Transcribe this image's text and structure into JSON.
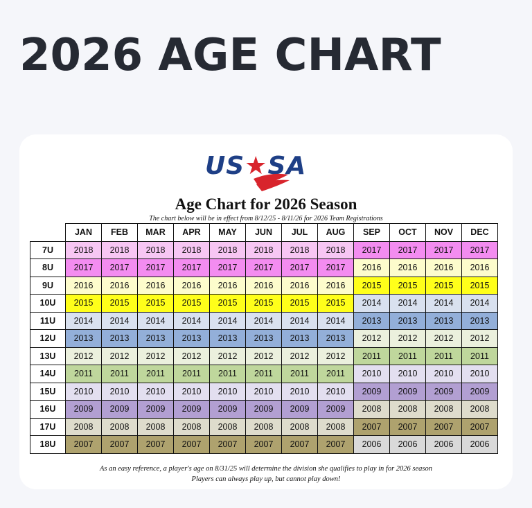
{
  "page_title": "2026 AGE CHART",
  "logo_text_left": "US",
  "logo_text_star": "★",
  "logo_text_right": "SA",
  "chart_title": "Age Chart for 2026 Season",
  "chart_subtitle": "The chart below will be in effect from 8/12/25 - 8/11/26 for 2026 Team Registrations",
  "months": [
    "JAN",
    "FEB",
    "MAR",
    "APR",
    "MAY",
    "JUN",
    "JUL",
    "AUG",
    "SEP",
    "OCT",
    "NOV",
    "DEC"
  ],
  "chart_data": {
    "type": "table",
    "columns": [
      "JAN",
      "FEB",
      "MAR",
      "APR",
      "MAY",
      "JUN",
      "JUL",
      "AUG",
      "SEP",
      "OCT",
      "NOV",
      "DEC"
    ],
    "rows": [
      {
        "division": "7U",
        "values": [
          "2018",
          "2018",
          "2018",
          "2018",
          "2018",
          "2018",
          "2018",
          "2018",
          "2017",
          "2017",
          "2017",
          "2017"
        ]
      },
      {
        "division": "8U",
        "values": [
          "2017",
          "2017",
          "2017",
          "2017",
          "2017",
          "2017",
          "2017",
          "2017",
          "2016",
          "2016",
          "2016",
          "2016"
        ]
      },
      {
        "division": "9U",
        "values": [
          "2016",
          "2016",
          "2016",
          "2016",
          "2016",
          "2016",
          "2016",
          "2016",
          "2015",
          "2015",
          "2015",
          "2015"
        ]
      },
      {
        "division": "10U",
        "values": [
          "2015",
          "2015",
          "2015",
          "2015",
          "2015",
          "2015",
          "2015",
          "2015",
          "2014",
          "2014",
          "2014",
          "2014"
        ]
      },
      {
        "division": "11U",
        "values": [
          "2014",
          "2014",
          "2014",
          "2014",
          "2014",
          "2014",
          "2014",
          "2014",
          "2013",
          "2013",
          "2013",
          "2013"
        ]
      },
      {
        "division": "12U",
        "values": [
          "2013",
          "2013",
          "2013",
          "2013",
          "2013",
          "2013",
          "2013",
          "2013",
          "2012",
          "2012",
          "2012",
          "2012"
        ]
      },
      {
        "division": "13U",
        "values": [
          "2012",
          "2012",
          "2012",
          "2012",
          "2012",
          "2012",
          "2012",
          "2012",
          "2011",
          "2011",
          "2011",
          "2011"
        ]
      },
      {
        "division": "14U",
        "values": [
          "2011",
          "2011",
          "2011",
          "2011",
          "2011",
          "2011",
          "2011",
          "2011",
          "2010",
          "2010",
          "2010",
          "2010"
        ]
      },
      {
        "division": "15U",
        "values": [
          "2010",
          "2010",
          "2010",
          "2010",
          "2010",
          "2010",
          "2010",
          "2010",
          "2009",
          "2009",
          "2009",
          "2009"
        ]
      },
      {
        "division": "16U",
        "values": [
          "2009",
          "2009",
          "2009",
          "2009",
          "2009",
          "2009",
          "2009",
          "2009",
          "2008",
          "2008",
          "2008",
          "2008"
        ]
      },
      {
        "division": "17U",
        "values": [
          "2008",
          "2008",
          "2008",
          "2008",
          "2008",
          "2008",
          "2008",
          "2008",
          "2007",
          "2007",
          "2007",
          "2007"
        ]
      },
      {
        "division": "18U",
        "values": [
          "2007",
          "2007",
          "2007",
          "2007",
          "2007",
          "2007",
          "2007",
          "2007",
          "2006",
          "2006",
          "2006",
          "2006"
        ]
      }
    ]
  },
  "year_colors": {
    "2018": "#f7c6f3",
    "2017": "#f38cf0",
    "2016": "#fdfccc",
    "2015": "#ffff1a",
    "2014": "#d9e1ef",
    "2013": "#93afd9",
    "2012": "#ebf0dd",
    "2011": "#bfd79c",
    "2010": "#e3dff0",
    "2009": "#b29fd2",
    "2008": "#dedccc",
    "2007": "#aea26e",
    "2006": "#d9d9d9"
  },
  "footer_line1": "As an easy reference, a player's age on 8/31/25 will determine the division she qualifies to play in for 2026 season",
  "footer_line2": "Players can always play up, but cannot play down!"
}
